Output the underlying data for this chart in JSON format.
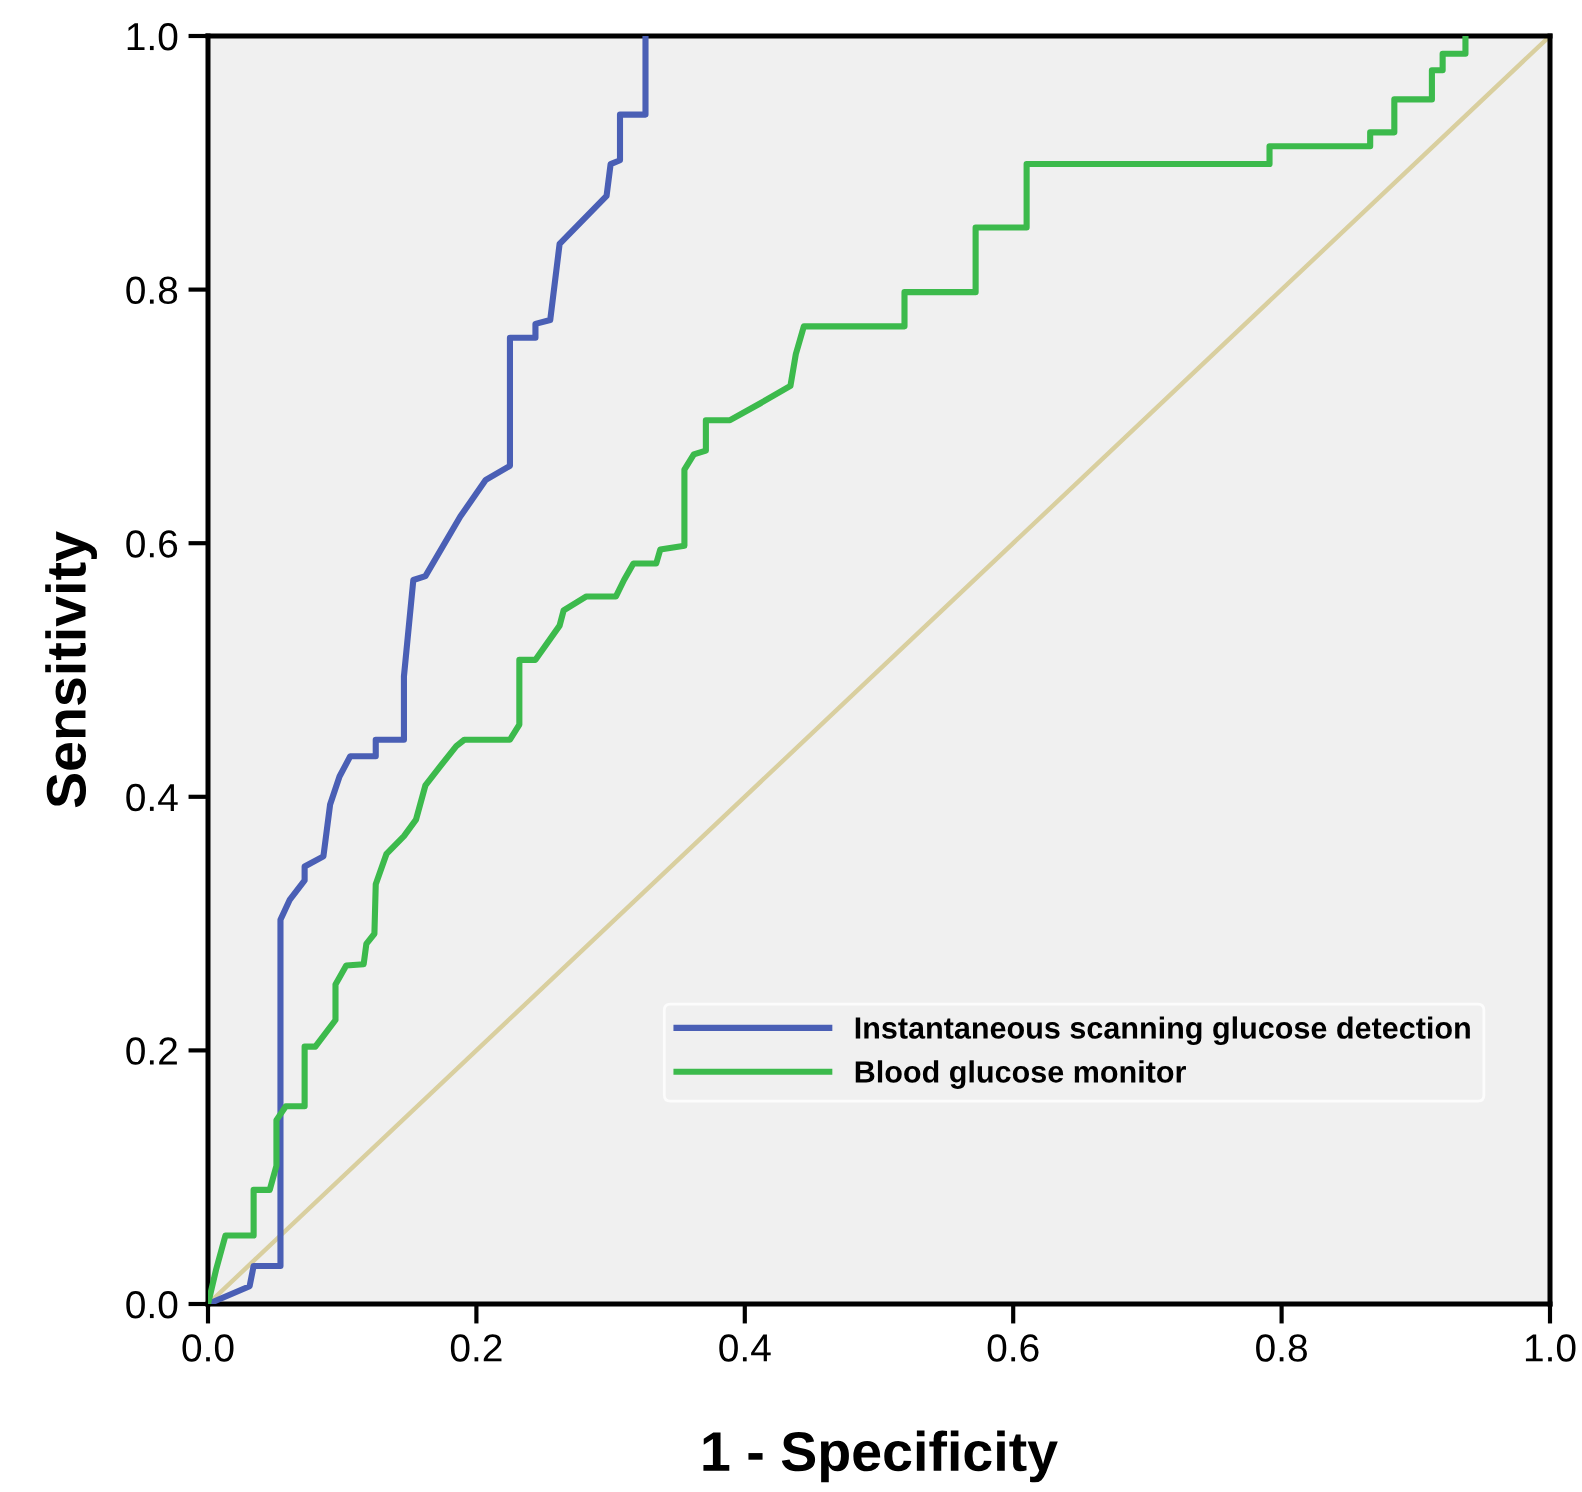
{
  "chart_data": {
    "type": "line",
    "xlabel": "1 - Specificity",
    "ylabel": "Sensitivity",
    "xlim": [
      0,
      1
    ],
    "ylim": [
      0,
      1
    ],
    "xticks": [
      {
        "value": 0,
        "label": "0.0"
      },
      0.2,
      0.4,
      0.6,
      0.8,
      {
        "value": 1,
        "label": "1.0"
      }
    ],
    "yticks": [
      {
        "value": 0,
        "label": "0.0"
      },
      0.2,
      0.4,
      0.6,
      0.8,
      {
        "value": 1,
        "label": "1.0"
      }
    ],
    "grid": false,
    "legend": "bottom right",
    "series": [
      {
        "name": "Instantaneous scanning glucose detection",
        "color": "#4a5fb5",
        "x": [
          0,
          0.031,
          0.034,
          0.054,
          0.054,
          0.061,
          0.072,
          0.072,
          0.086,
          0.091,
          0.098,
          0.106,
          0.125,
          0.125,
          0.146,
          0.146,
          0.153,
          0.162,
          0.188,
          0.207,
          0.225,
          0.225,
          0.244,
          0.244,
          0.255,
          0.262,
          0.297,
          0.3,
          0.307,
          0.307,
          0.326,
          0.326
        ],
        "values": [
          0,
          0.014,
          0.03,
          0.03,
          0.303,
          0.319,
          0.334,
          0.345,
          0.353,
          0.394,
          0.416,
          0.432,
          0.432,
          0.445,
          0.445,
          0.495,
          0.571,
          0.574,
          0.621,
          0.65,
          0.661,
          0.762,
          0.762,
          0.773,
          0.776,
          0.836,
          0.874,
          0.899,
          0.902,
          0.938,
          0.938,
          1.0
        ]
      },
      {
        "name": "Blood glucose monitor",
        "color": "#3cba4c",
        "x": [
          0,
          0.006,
          0.013,
          0.034,
          0.034,
          0.046,
          0.051,
          0.051,
          0.058,
          0.072,
          0.072,
          0.08,
          0.095,
          0.095,
          0.103,
          0.116,
          0.118,
          0.124,
          0.125,
          0.133,
          0.146,
          0.155,
          0.162,
          0.173,
          0.185,
          0.191,
          0.225,
          0.232,
          0.232,
          0.244,
          0.262,
          0.265,
          0.282,
          0.304,
          0.31,
          0.317,
          0.334,
          0.337,
          0.355,
          0.355,
          0.362,
          0.371,
          0.371,
          0.389,
          0.411,
          0.434,
          0.438,
          0.444,
          0.519,
          0.519,
          0.572,
          0.572,
          0.61,
          0.61,
          0.791,
          0.791,
          0.866,
          0.866,
          0.884,
          0.884,
          0.912,
          0.912,
          0.92,
          0.92,
          0.937,
          0.937
        ],
        "values": [
          0,
          0.027,
          0.054,
          0.054,
          0.09,
          0.09,
          0.109,
          0.145,
          0.156,
          0.156,
          0.203,
          0.203,
          0.224,
          0.252,
          0.267,
          0.268,
          0.284,
          0.292,
          0.331,
          0.355,
          0.369,
          0.382,
          0.409,
          0.424,
          0.44,
          0.445,
          0.445,
          0.457,
          0.508,
          0.508,
          0.535,
          0.547,
          0.558,
          0.558,
          0.571,
          0.584,
          0.584,
          0.595,
          0.598,
          0.658,
          0.67,
          0.673,
          0.697,
          0.697,
          0.71,
          0.724,
          0.749,
          0.771,
          0.771,
          0.798,
          0.798,
          0.849,
          0.849,
          0.899,
          0.899,
          0.913,
          0.913,
          0.924,
          0.924,
          0.95,
          0.95,
          0.973,
          0.973,
          0.986,
          0.986,
          1.0
        ]
      },
      {
        "color": "#d9cf9f",
        "x": [
          0,
          1
        ],
        "values": [
          0,
          1
        ]
      }
    ]
  }
}
